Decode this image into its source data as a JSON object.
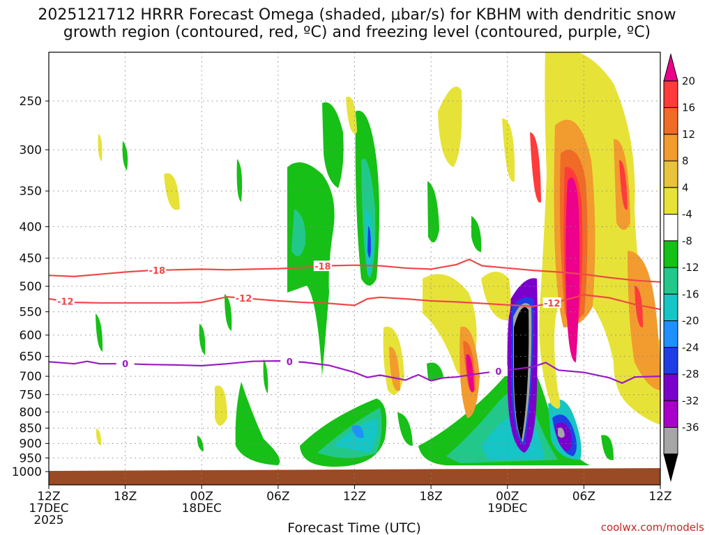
{
  "chart_data": {
    "type": "contour",
    "title_line1": "2025121712 HRRR Forecast Omega (shaded, μbar/s) for KBHM with dendritic snow",
    "title_line2": "growth region (contoured, red, ºC) and freezing level (contoured, purple, ºC)",
    "xlabel": "Forecast Time (UTC)",
    "credit": "coolwx.com/models",
    "x_range_hours": [
      0,
      48
    ],
    "x_ticks": [
      {
        "hour": 0,
        "lines": [
          "12Z",
          "17DEC",
          "2025"
        ]
      },
      {
        "hour": 6,
        "lines": [
          "18Z"
        ]
      },
      {
        "hour": 12,
        "lines": [
          "00Z",
          "18DEC"
        ]
      },
      {
        "hour": 18,
        "lines": [
          "06Z"
        ]
      },
      {
        "hour": 24,
        "lines": [
          "12Z"
        ]
      },
      {
        "hour": 30,
        "lines": [
          "18Z"
        ]
      },
      {
        "hour": 36,
        "lines": [
          "00Z",
          "19DEC"
        ]
      },
      {
        "hour": 42,
        "lines": [
          "06Z"
        ]
      },
      {
        "hour": 48,
        "lines": [
          "12Z"
        ]
      }
    ],
    "y_levels_hpa": [
      250,
      300,
      350,
      400,
      450,
      500,
      550,
      600,
      650,
      700,
      750,
      800,
      850,
      900,
      950,
      1000
    ],
    "y_range_hpa": [
      200,
      1010
    ],
    "colorbar": {
      "labels": [
        "20",
        "16",
        "12",
        "8",
        "4",
        "-4",
        "-8",
        "-12",
        "-16",
        "-20",
        "-24",
        "-28",
        "-32",
        "-36"
      ],
      "colors": [
        "#ec008c",
        "#ff3b3b",
        "#f06b26",
        "#f29b2f",
        "#e8c43a",
        "#e7e238",
        "#ffffff",
        "#16c016",
        "#22c88a",
        "#16c5c5",
        "#1e90ff",
        "#1f3ee6",
        "#7a00cc",
        "#a800c8",
        "#a6a6a6",
        "#000000"
      ]
    },
    "contours": [
      {
        "name": "dgz-top",
        "label": "-18",
        "color": "#f04848",
        "points": [
          [
            0,
            480
          ],
          [
            2,
            482
          ],
          [
            4,
            478
          ],
          [
            6,
            474
          ],
          [
            8,
            471
          ],
          [
            10,
            470
          ],
          [
            12,
            469
          ],
          [
            14,
            470
          ],
          [
            16,
            469
          ],
          [
            18,
            468
          ],
          [
            20,
            466
          ],
          [
            22,
            463
          ],
          [
            24,
            462
          ],
          [
            26,
            463
          ],
          [
            28,
            467
          ],
          [
            30,
            469
          ],
          [
            32,
            461
          ],
          [
            33,
            452
          ],
          [
            34,
            463
          ],
          [
            36,
            467
          ],
          [
            38,
            471
          ],
          [
            40,
            474
          ],
          [
            42,
            478
          ],
          [
            44,
            484
          ],
          [
            46,
            489
          ],
          [
            48,
            492
          ]
        ],
        "label_hours": [
          8.5,
          21.5
        ]
      },
      {
        "name": "dgz-bottom",
        "label": "-12",
        "color": "#f04848",
        "points": [
          [
            0,
            524
          ],
          [
            2,
            531
          ],
          [
            4,
            532
          ],
          [
            6,
            532
          ],
          [
            8,
            532
          ],
          [
            10,
            532
          ],
          [
            12,
            531
          ],
          [
            14,
            520
          ],
          [
            16,
            524
          ],
          [
            18,
            528
          ],
          [
            20,
            531
          ],
          [
            22,
            533
          ],
          [
            24,
            537
          ],
          [
            25,
            524
          ],
          [
            26,
            521
          ],
          [
            28,
            524
          ],
          [
            30,
            528
          ],
          [
            32,
            530
          ],
          [
            34,
            533
          ],
          [
            36,
            536
          ],
          [
            38,
            539
          ],
          [
            40,
            530
          ],
          [
            42,
            516
          ],
          [
            44,
            522
          ],
          [
            46,
            535
          ],
          [
            48,
            545
          ]
        ],
        "label_hours": [
          1.3,
          15.3,
          39.5
        ]
      },
      {
        "name": "freezing-level",
        "label": "0",
        "color": "#9a1ac4",
        "points": [
          [
            0,
            663
          ],
          [
            2,
            668
          ],
          [
            3,
            662
          ],
          [
            4,
            668
          ],
          [
            6,
            668
          ],
          [
            8,
            670
          ],
          [
            10,
            671
          ],
          [
            12,
            673
          ],
          [
            14,
            668
          ],
          [
            16,
            662
          ],
          [
            18,
            661
          ],
          [
            20,
            664
          ],
          [
            22,
            672
          ],
          [
            24,
            690
          ],
          [
            25,
            703
          ],
          [
            26,
            697
          ],
          [
            28,
            710
          ],
          [
            29,
            696
          ],
          [
            30,
            712
          ],
          [
            31,
            704
          ],
          [
            32,
            702
          ],
          [
            34,
            692
          ],
          [
            36,
            684
          ],
          [
            38,
            676
          ],
          [
            39,
            665
          ],
          [
            40,
            684
          ],
          [
            42,
            690
          ],
          [
            44,
            704
          ],
          [
            45,
            718
          ],
          [
            46,
            702
          ],
          [
            48,
            700
          ]
        ],
        "label_hours": [
          6,
          18.9,
          35.3
        ]
      }
    ]
  }
}
